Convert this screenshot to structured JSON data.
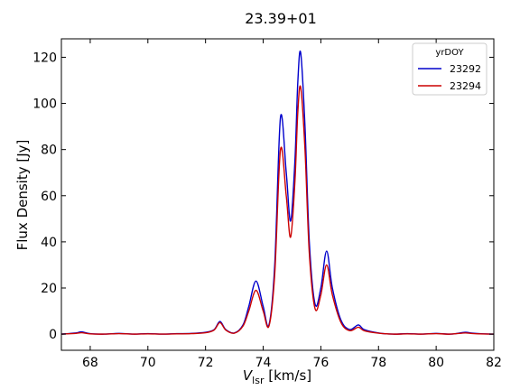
{
  "chart_data": {
    "type": "line",
    "title": "23.39+01",
    "xlabel_main": "V",
    "xlabel_sub": "lsr",
    "xlabel_unit": " [km/s]",
    "ylabel": "Flux Density [Jy]",
    "xlim": [
      67,
      82
    ],
    "ylim": [
      -7,
      128
    ],
    "xticks": [
      68,
      70,
      72,
      74,
      76,
      78,
      80,
      82
    ],
    "yticks": [
      0,
      20,
      40,
      60,
      80,
      100,
      120
    ],
    "grid": false,
    "legend": {
      "title": "yrDOY",
      "placement": "top-right"
    },
    "series": [
      {
        "name": "23292",
        "color": "#0000cc",
        "x": [
          67.0,
          67.5,
          67.7,
          68.0,
          68.5,
          69.0,
          69.5,
          70.0,
          70.5,
          71.0,
          71.5,
          72.0,
          72.3,
          72.5,
          72.7,
          73.0,
          73.3,
          73.5,
          73.75,
          74.0,
          74.2,
          74.4,
          74.6,
          74.8,
          74.95,
          75.1,
          75.2,
          75.3,
          75.45,
          75.6,
          75.8,
          76.0,
          76.2,
          76.4,
          76.7,
          77.0,
          77.3,
          77.5,
          78.0,
          78.5,
          79.0,
          79.5,
          80.0,
          80.5,
          81.0,
          81.2,
          81.5,
          82.0
        ],
        "y": [
          0,
          0.5,
          1,
          0.2,
          0,
          0.3,
          0,
          0.2,
          0,
          0.2,
          0.3,
          0.8,
          2,
          5.5,
          2,
          0.5,
          4,
          12,
          23,
          12,
          4,
          30,
          94,
          70,
          49,
          75,
          109,
          122,
          90,
          40,
          13,
          20,
          36,
          20,
          6,
          2,
          4,
          2,
          0.5,
          0,
          0.2,
          0,
          0.3,
          0,
          0.8,
          0.5,
          0.2,
          0
        ]
      },
      {
        "name": "23294",
        "color": "#cc0000",
        "x": [
          67.0,
          67.5,
          67.7,
          68.0,
          68.5,
          69.0,
          69.5,
          70.0,
          70.5,
          71.0,
          71.5,
          72.0,
          72.3,
          72.5,
          72.7,
          73.0,
          73.3,
          73.5,
          73.75,
          74.0,
          74.2,
          74.4,
          74.6,
          74.8,
          74.95,
          75.1,
          75.2,
          75.3,
          75.45,
          75.6,
          75.8,
          76.0,
          76.2,
          76.4,
          76.7,
          77.0,
          77.3,
          77.5,
          78.0,
          78.5,
          79.0,
          79.5,
          80.0,
          80.5,
          81.0,
          81.2,
          81.5,
          82.0
        ],
        "y": [
          0,
          0.3,
          0.6,
          0.1,
          0,
          0.2,
          0,
          0.1,
          0,
          0.1,
          0.2,
          0.6,
          1.8,
          5,
          1.8,
          0.4,
          3.5,
          10,
          19,
          10,
          3.5,
          26,
          80,
          60,
          42,
          66,
          96,
          107,
          80,
          35,
          11,
          17,
          30,
          17,
          5,
          1.5,
          3,
          1.5,
          0.4,
          0,
          0.1,
          0,
          0.2,
          0,
          0.5,
          0.3,
          0.1,
          0
        ]
      }
    ]
  }
}
